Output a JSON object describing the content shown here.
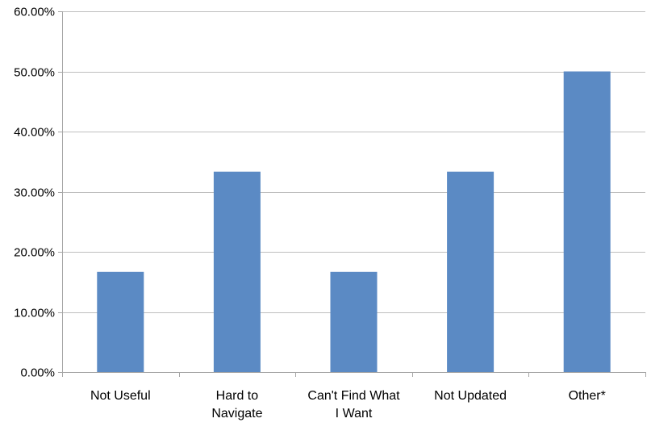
{
  "chart_data": {
    "type": "bar",
    "categories": [
      "Not Useful",
      "Hard to Navigate",
      "Can't Find What I Want",
      "Not Updated",
      "Other*"
    ],
    "category_label_lines": [
      [
        "Not Useful"
      ],
      [
        "Hard to",
        "Navigate"
      ],
      [
        "Can't Find What",
        "I Want"
      ],
      [
        "Not Updated"
      ],
      [
        "Other*"
      ]
    ],
    "values": [
      16.67,
      33.33,
      16.67,
      33.33,
      50.0
    ],
    "ylim": [
      0,
      60
    ],
    "yticks": [
      0,
      10,
      20,
      30,
      40,
      50,
      60
    ],
    "ytick_labels": [
      "0.00%",
      "10.00%",
      "20.00%",
      "30.00%",
      "40.00%",
      "50.00%",
      "60.00%"
    ],
    "title": "",
    "xlabel": "",
    "ylabel": "",
    "grid": "horizontal",
    "legend": "none",
    "bar_color": "#5B8AC4",
    "grid_color": "#BFBFBF",
    "axis_color": "#A6A6A6"
  }
}
